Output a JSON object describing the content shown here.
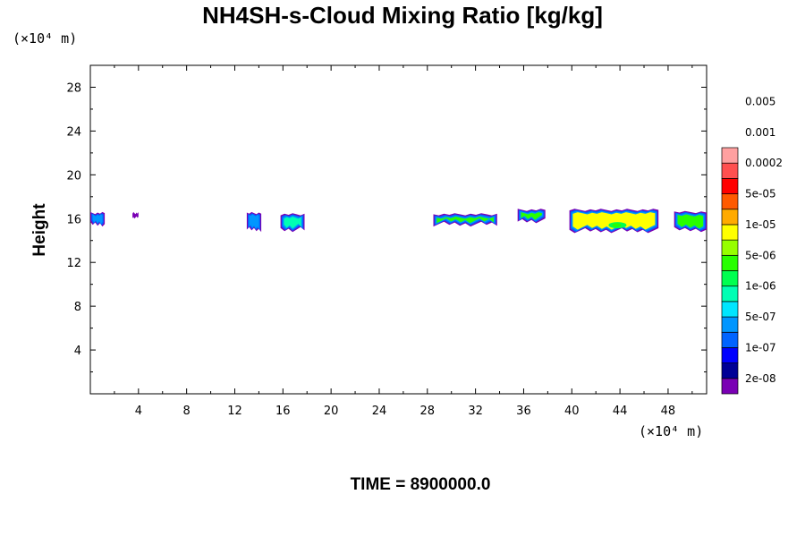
{
  "chart_data": {
    "type": "heatmap",
    "title": "NH4SH-s-Cloud Mixing Ratio [kg/kg]",
    "xlabel": "",
    "ylabel": "Height",
    "x_unit": "(×10⁴ m)",
    "y_unit": "(×10⁴ m)",
    "xlim": [
      0,
      51.2
    ],
    "ylim": [
      0,
      30
    ],
    "x_ticks": [
      4,
      8,
      12,
      16,
      20,
      24,
      28,
      32,
      36,
      40,
      44,
      48
    ],
    "y_ticks": [
      4,
      8,
      12,
      16,
      20,
      24,
      28
    ],
    "annotation": "TIME = 8900000.0",
    "colorbar": {
      "levels": [
        "2e-08",
        "1e-07",
        "5e-07",
        "1e-06",
        "5e-06",
        "1e-05",
        "5e-05",
        "0.0002",
        "0.001",
        "0.005"
      ],
      "colors": [
        "#7a00b4",
        "#000096",
        "#0000ff",
        "#0064ff",
        "#0096ff",
        "#00e6ff",
        "#00ffb4",
        "#00ff50",
        "#28ff00",
        "#96ff00",
        "#ffff00",
        "#ffaa00",
        "#ff5a00",
        "#ff0000",
        "#ff5050",
        "#ffa0a0"
      ]
    },
    "cloud_layers": [
      {
        "x": [
          0.0,
          1.2
        ],
        "y": [
          15.5,
          16.5
        ],
        "max_level": "1e-06"
      },
      {
        "x": [
          3.5,
          4.0
        ],
        "y": [
          16.1,
          16.5
        ],
        "max_level": "2e-08"
      },
      {
        "x": [
          13.0,
          14.2
        ],
        "y": [
          15.0,
          16.5
        ],
        "max_level": "5e-07"
      },
      {
        "x": [
          15.8,
          17.8
        ],
        "y": [
          15.0,
          16.4
        ],
        "max_level": "5e-07"
      },
      {
        "x": [
          28.5,
          33.8
        ],
        "y": [
          15.5,
          16.4
        ],
        "max_level": "1e-06"
      },
      {
        "x": [
          35.5,
          37.8
        ],
        "y": [
          15.8,
          16.8
        ],
        "max_level": "1e-06"
      },
      {
        "x": [
          39.8,
          47.2
        ],
        "y": [
          14.9,
          16.8
        ],
        "max_level": "5e-06"
      },
      {
        "x": [
          48.5,
          51.2
        ],
        "y": [
          15.0,
          16.6
        ],
        "max_level": "1e-06"
      }
    ]
  }
}
